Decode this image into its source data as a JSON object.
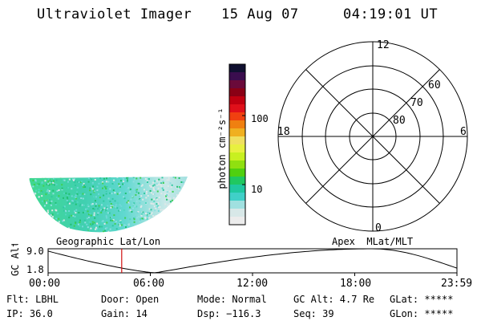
{
  "header": {
    "instrument": "Ultraviolet Imager",
    "date": "15 Aug 07",
    "time": "04:19:01 UT"
  },
  "colorbar": {
    "unit_label": "photon cm⁻²s⁻¹",
    "ticks": [
      "100",
      "10"
    ],
    "colors": [
      "#101030",
      "#3a0d4e",
      "#6a0a3a",
      "#8a0015",
      "#c00010",
      "#e0101a",
      "#f04010",
      "#f08010",
      "#f0b020",
      "#f0e060",
      "#e8f040",
      "#c8f020",
      "#90e010",
      "#50d010",
      "#20c860",
      "#20c8a0",
      "#40d0c8",
      "#a0e0e0",
      "#d8e8e8",
      "#ececec"
    ]
  },
  "image_panel": {
    "label": "Geographic Lat/Lon"
  },
  "polar_plot": {
    "label": "Apex  MLat/MLT",
    "mlt_labels": {
      "top": "12",
      "left": "18",
      "right": "6",
      "bottom": "0"
    },
    "lat_labels": [
      "60",
      "70",
      "80"
    ]
  },
  "altitude_plot": {
    "y_label": "GC Alt",
    "y_ticks": [
      "9.0",
      "1.8"
    ],
    "x_ticks": [
      "00:00",
      "06:00",
      "12:00",
      "18:00",
      "23:59"
    ],
    "current_time_hours": 4.32,
    "accent": "#d01010"
  },
  "status": {
    "flt": "Flt: LBHL",
    "ip": "IP: 36.0",
    "door": "Door: Open",
    "gain": "Gain: 14",
    "mode": "Mode: Normal",
    "dsp": "Dsp: −116.3",
    "gc_alt": "GC Alt: 4.7 Re",
    "seq": "Seq: 39",
    "glat": "GLat: *****",
    "glon": "GLon: *****"
  }
}
